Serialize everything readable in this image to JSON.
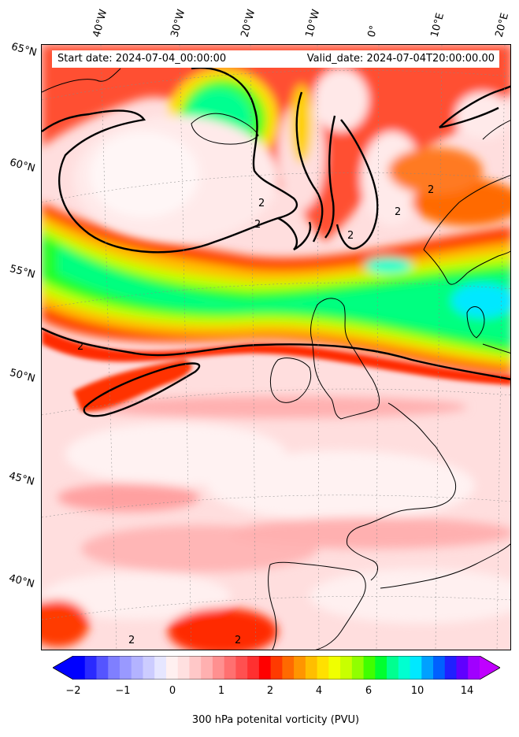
{
  "header": {
    "start_date": "Start date: 2024-07-04_00:00:00",
    "valid_date": "Valid_date: 2024-07-04T20:00:00.00"
  },
  "axes": {
    "lat_labels": [
      "65°N",
      "60°N",
      "55°N",
      "50°N",
      "45°N",
      "40°N"
    ],
    "lon_labels": [
      "40°W",
      "30°W",
      "20°W",
      "10°W",
      "0°",
      "10°E",
      "20°E"
    ]
  },
  "contour_label": "2",
  "colorbar": {
    "label": "300 hPa potenital vorticity (PVU)",
    "ticks": [
      "−2",
      "−1",
      "0",
      "1",
      "2",
      "4",
      "6",
      "10",
      "14"
    ],
    "colors": [
      "#0000ff",
      "#2a2aff",
      "#5555ff",
      "#7f7fff",
      "#9999ff",
      "#b3b3ff",
      "#ccccff",
      "#e6e6ff",
      "#fff0f0",
      "#ffe0e0",
      "#ffc8c8",
      "#ffb0b0",
      "#ff9090",
      "#ff7070",
      "#ff5050",
      "#ff3030",
      "#ff0000",
      "#ff3a00",
      "#ff6a00",
      "#ff9500",
      "#ffbe00",
      "#ffe000",
      "#f0ff00",
      "#c8ff00",
      "#90ff00",
      "#40ff00",
      "#00ff30",
      "#00ff90",
      "#00ffd0",
      "#00e8ff",
      "#00a0ff",
      "#0060ff",
      "#2020ff",
      "#6000ff",
      "#a000ff"
    ],
    "min_arrow": "#0000ff",
    "max_arrow": "#c000ff"
  }
}
